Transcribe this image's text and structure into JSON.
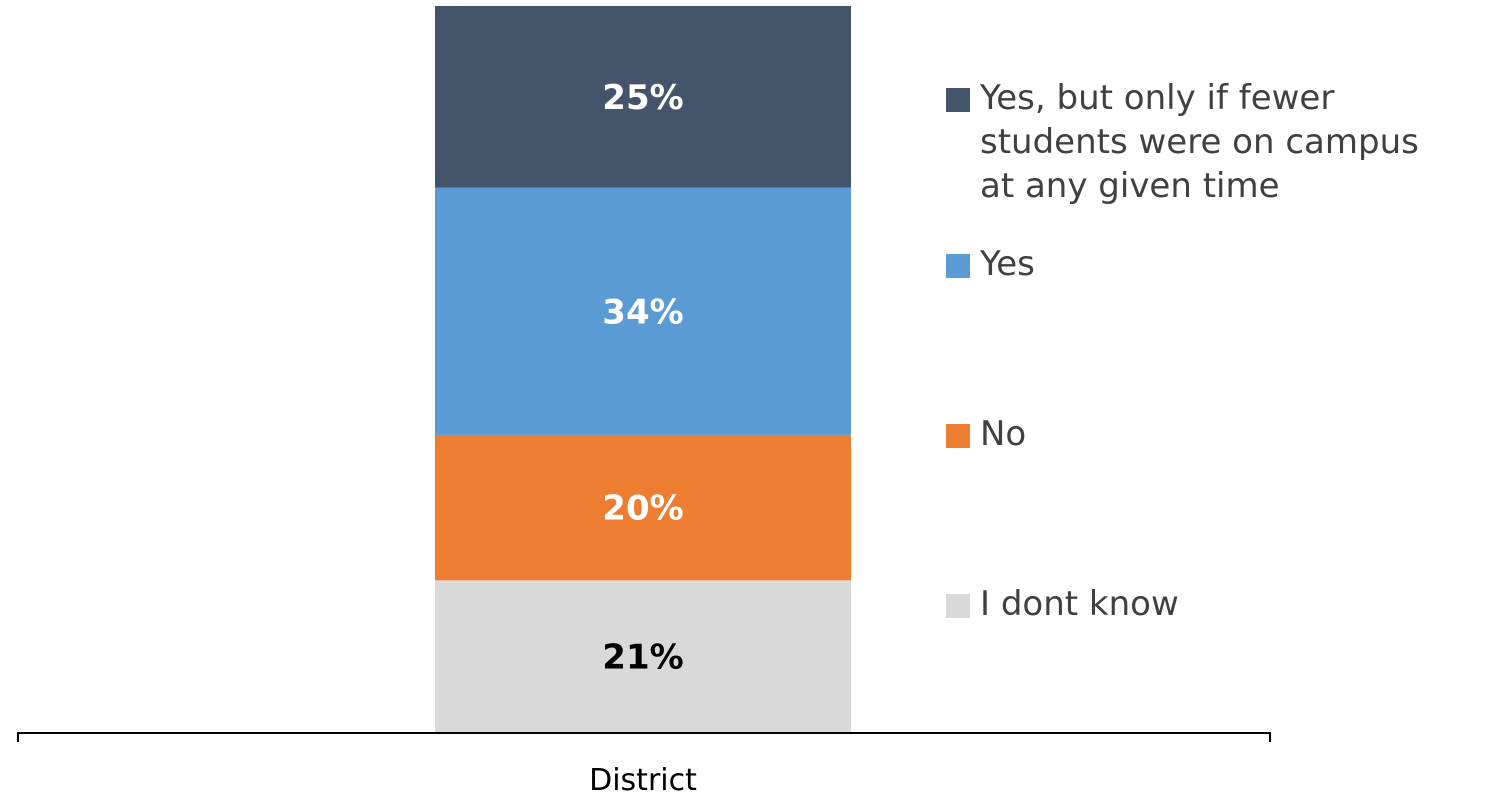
{
  "chart_data": {
    "type": "bar",
    "stacked": true,
    "categories": [
      "District"
    ],
    "series": [
      {
        "name": "I dont know",
        "values": [
          21
        ],
        "label": "21%",
        "color": "#d9d9d9",
        "label_color": "#000000"
      },
      {
        "name": "No",
        "values": [
          20
        ],
        "label": "20%",
        "color": "#ed7d31",
        "label_color": "#ffffff"
      },
      {
        "name": "Yes",
        "values": [
          34
        ],
        "label": "34%",
        "color": "#5b9bd5",
        "label_color": "#ffffff"
      },
      {
        "name": "Yes, but only if fewer students were on campus at any given time",
        "values": [
          25
        ],
        "label": "25%",
        "color": "#44546a",
        "label_color": "#ffffff"
      }
    ],
    "ylim": [
      0,
      100
    ],
    "grid": false,
    "legend_position": "right",
    "legend_order": [
      "Yes, but only if fewer students were on campus at any given time",
      "Yes",
      "No",
      "I dont know"
    ]
  }
}
